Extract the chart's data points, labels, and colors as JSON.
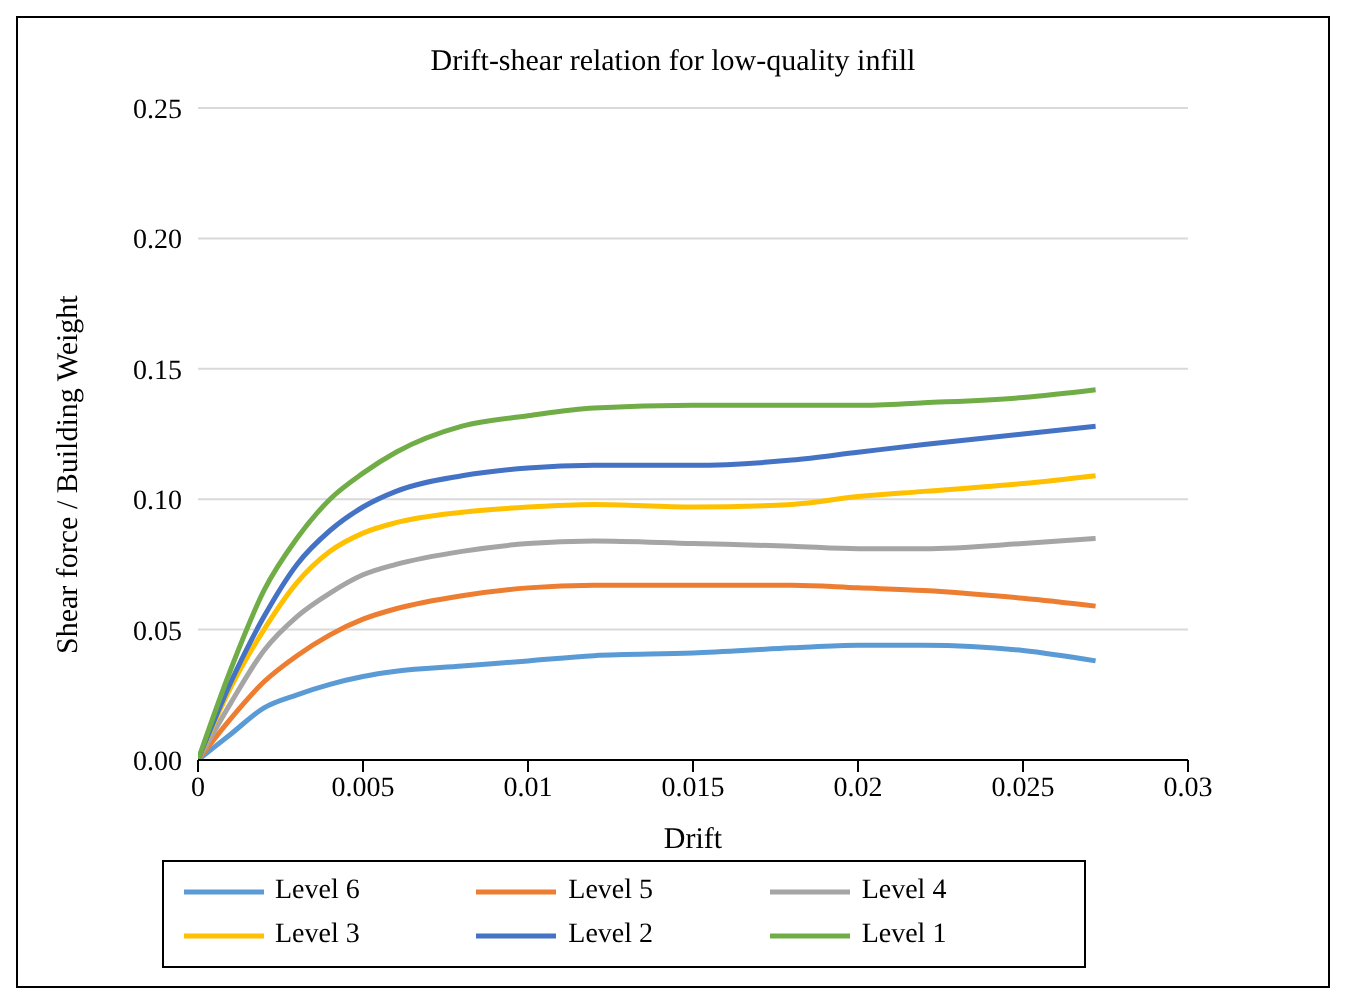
{
  "chart_data": {
    "type": "line",
    "title": "Drift-shear relation for low-quality infill",
    "xlabel": "Drift",
    "ylabel": "Shear force / Building Weight",
    "x": [
      0,
      0.001,
      0.002,
      0.003,
      0.004,
      0.005,
      0.006,
      0.008,
      0.01,
      0.012,
      0.015,
      0.018,
      0.02,
      0.022,
      0.025,
      0.0272
    ],
    "series": [
      {
        "name": "Level 6",
        "color": "#5b9bd5",
        "values": [
          0,
          0.01,
          0.02,
          0.025,
          0.029,
          0.032,
          0.034,
          0.036,
          0.038,
          0.04,
          0.041,
          0.043,
          0.044,
          0.044,
          0.042,
          0.038
        ]
      },
      {
        "name": "Level 5",
        "color": "#ed7d31",
        "values": [
          0,
          0.016,
          0.03,
          0.04,
          0.048,
          0.054,
          0.058,
          0.063,
          0.066,
          0.067,
          0.067,
          0.067,
          0.066,
          0.065,
          0.062,
          0.059
        ]
      },
      {
        "name": "Level 4",
        "color": "#a5a5a5",
        "values": [
          0,
          0.022,
          0.042,
          0.055,
          0.064,
          0.071,
          0.075,
          0.08,
          0.083,
          0.084,
          0.083,
          0.082,
          0.081,
          0.081,
          0.083,
          0.085
        ]
      },
      {
        "name": "Level 3",
        "color": "#ffc000",
        "values": [
          0,
          0.028,
          0.05,
          0.068,
          0.08,
          0.087,
          0.091,
          0.095,
          0.097,
          0.098,
          0.097,
          0.098,
          0.101,
          0.103,
          0.106,
          0.109
        ]
      },
      {
        "name": "Level 2",
        "color": "#4472c4",
        "values": [
          0,
          0.03,
          0.055,
          0.075,
          0.088,
          0.097,
          0.103,
          0.109,
          0.112,
          0.113,
          0.113,
          0.115,
          0.118,
          0.121,
          0.125,
          0.128
        ]
      },
      {
        "name": "Level 1",
        "color": "#70ad47",
        "values": [
          0,
          0.035,
          0.065,
          0.085,
          0.1,
          0.11,
          0.118,
          0.128,
          0.132,
          0.135,
          0.136,
          0.136,
          0.136,
          0.137,
          0.139,
          0.142
        ]
      }
    ],
    "xlim": [
      0,
      0.03
    ],
    "xticks": [
      0,
      0.005,
      0.01,
      0.015,
      0.02,
      0.025,
      0.03
    ],
    "ylim": [
      0,
      0.25
    ],
    "yticks": [
      {
        "value": 0,
        "label": "0.00"
      },
      {
        "value": 0.05,
        "label": "0.05"
      },
      {
        "value": 0.1,
        "label": "0.10"
      },
      {
        "value": 0.15,
        "label": "0.15"
      },
      {
        "value": 0.2,
        "label": "0.20"
      },
      {
        "value": 0.25,
        "label": "0.25"
      }
    ],
    "grid": "y",
    "legend": "bottom",
    "line_style": "solid"
  }
}
